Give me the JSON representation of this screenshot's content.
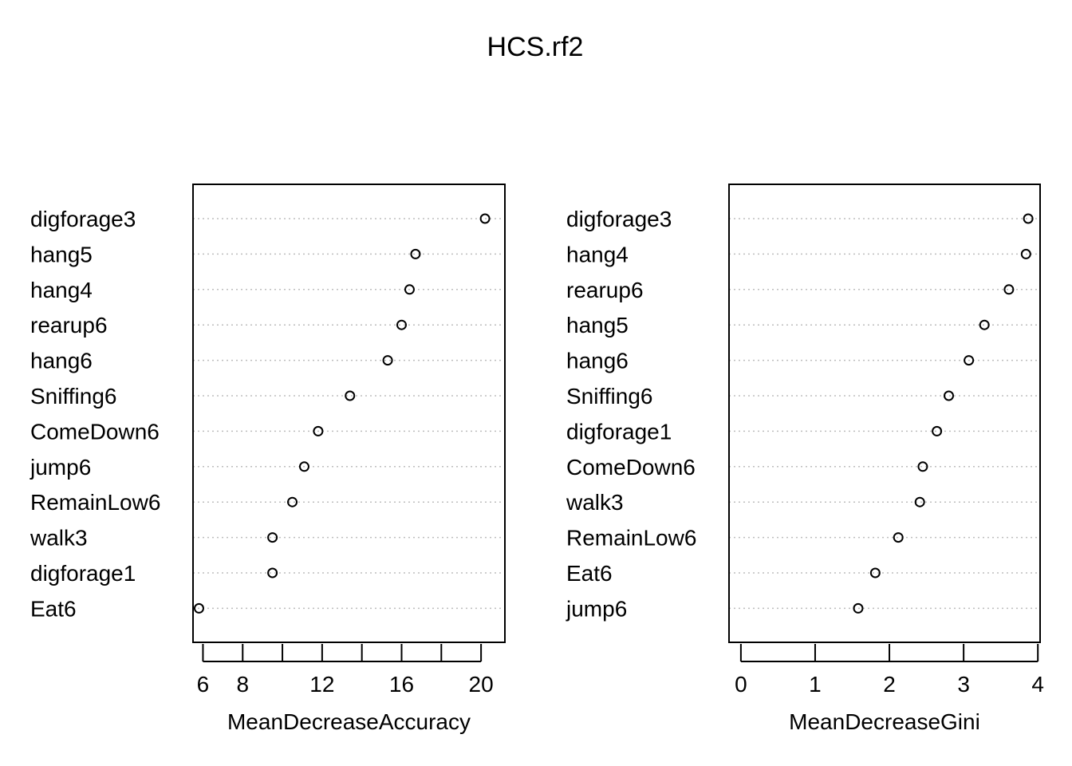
{
  "chart_data": {
    "title": "HCS.rf2",
    "panels": [
      {
        "type": "scatter",
        "style": "dotchart",
        "xlabel": "MeanDecreaseAccuracy",
        "xlim": [
          5.5,
          21.2
        ],
        "xticks": [
          6,
          8,
          10,
          12,
          14,
          16,
          18,
          20
        ],
        "xtick_labels": [
          "6",
          "8",
          "",
          "12",
          "",
          "16",
          "",
          "20"
        ],
        "categories": [
          "digforage3",
          "hang5",
          "hang4",
          "rearup6",
          "hang6",
          "Sniffing6",
          "ComeDown6",
          "jump6",
          "RemainLow6",
          "walk3",
          "digforage1",
          "Eat6"
        ],
        "values": [
          20.2,
          16.7,
          16.4,
          16.0,
          15.3,
          13.4,
          11.8,
          11.1,
          10.5,
          9.5,
          9.5,
          5.8
        ],
        "grid": "dotted horizontal"
      },
      {
        "type": "scatter",
        "style": "dotchart",
        "xlabel": "MeanDecreaseGini",
        "xlim": [
          -0.16,
          4.03
        ],
        "xticks": [
          0,
          1,
          2,
          3,
          4
        ],
        "xtick_labels": [
          "0",
          "1",
          "2",
          "3",
          "4"
        ],
        "categories": [
          "digforage3",
          "hang4",
          "rearup6",
          "hang5",
          "hang6",
          "Sniffing6",
          "digforage1",
          "ComeDown6",
          "walk3",
          "RemainLow6",
          "Eat6",
          "jump6"
        ],
        "values": [
          3.87,
          3.84,
          3.61,
          3.28,
          3.07,
          2.8,
          2.64,
          2.45,
          2.41,
          2.12,
          1.81,
          1.58
        ],
        "grid": "dotted horizontal"
      }
    ]
  }
}
